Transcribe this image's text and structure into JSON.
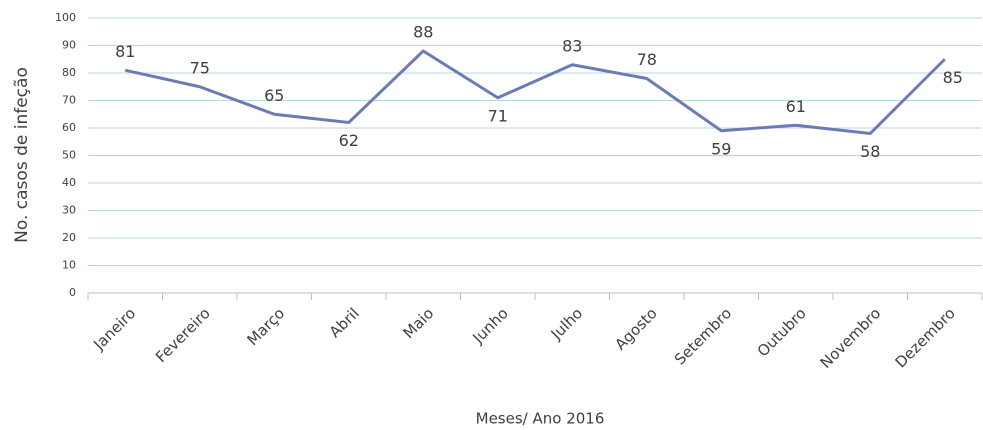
{
  "chart_data": {
    "type": "line",
    "categories": [
      "Janeiro",
      "Fevereiro",
      "Março",
      "Abril",
      "Maio",
      "Junho",
      "Julho",
      "Agosto",
      "Setembro",
      "Outubro",
      "Novembro",
      "Dezembro"
    ],
    "series": [
      {
        "color": "#6c7bb6",
        "values": [
          81,
          75,
          65,
          62,
          88,
          71,
          83,
          78,
          59,
          61,
          58,
          85
        ]
      }
    ],
    "ylim": [
      0,
      100
    ],
    "yticks": [
      0,
      10,
      20,
      30,
      40,
      50,
      60,
      70,
      80,
      90,
      100
    ],
    "grid": true,
    "xlabel": "Meses/ Ano 2016",
    "ylabel": "No. casos de infeção"
  }
}
